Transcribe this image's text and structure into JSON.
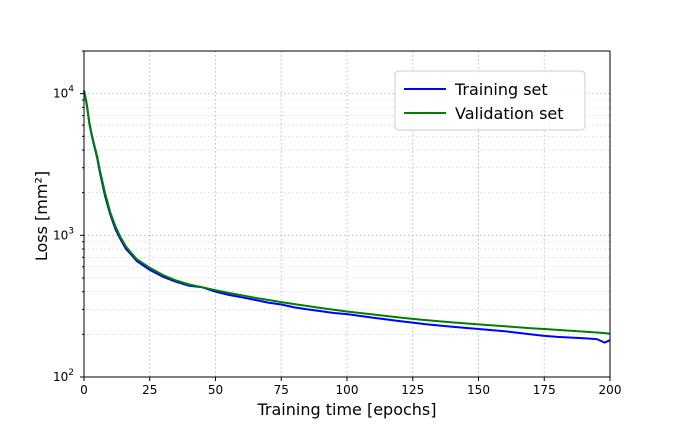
{
  "chart_data": {
    "type": "line",
    "title": "",
    "xlabel": "Training time [epochs]",
    "ylabel": "Loss [mm²]",
    "xlim": [
      0,
      200
    ],
    "ylim": [
      100,
      20000
    ],
    "yscale": "log",
    "grid": true,
    "legend_position": "top-right",
    "x_ticks": [
      0,
      25,
      50,
      75,
      100,
      125,
      150,
      175,
      200
    ],
    "x_tick_labels": [
      "0",
      "25",
      "50",
      "75",
      "100",
      "125",
      "150",
      "175",
      "200"
    ],
    "y_ticks": [
      100,
      1000,
      10000
    ],
    "y_tick_labels": [
      {
        "base": "10",
        "exp": "2"
      },
      {
        "base": "10",
        "exp": "3"
      },
      {
        "base": "10",
        "exp": "4"
      }
    ],
    "x": [
      0,
      1,
      2,
      3,
      4,
      5,
      6,
      8,
      10,
      12,
      14,
      16,
      18,
      20,
      25,
      30,
      35,
      40,
      45,
      50,
      55,
      60,
      65,
      70,
      75,
      80,
      85,
      90,
      95,
      100,
      110,
      120,
      125,
      130,
      140,
      150,
      160,
      170,
      175,
      180,
      190,
      195,
      198,
      200
    ],
    "series": [
      {
        "name": "Training set",
        "color": "#0000ff",
        "values": [
          10500,
          8500,
          6200,
          5000,
          4200,
          3500,
          2800,
          1900,
          1400,
          1100,
          930,
          800,
          730,
          660,
          570,
          510,
          470,
          440,
          430,
          400,
          380,
          365,
          350,
          335,
          325,
          310,
          300,
          292,
          283,
          278,
          262,
          248,
          242,
          236,
          226,
          218,
          210,
          200,
          195,
          192,
          188,
          185,
          175,
          182
        ]
      },
      {
        "name": "Validation set",
        "color": "#008000",
        "values": [
          10500,
          8600,
          6300,
          5100,
          4300,
          3600,
          2900,
          2000,
          1450,
          1150,
          960,
          830,
          750,
          680,
          590,
          525,
          480,
          450,
          430,
          410,
          392,
          377,
          362,
          350,
          338,
          327,
          317,
          307,
          298,
          290,
          276,
          263,
          257,
          252,
          243,
          235,
          228,
          221,
          218,
          215,
          209,
          206,
          204,
          202
        ]
      }
    ]
  }
}
